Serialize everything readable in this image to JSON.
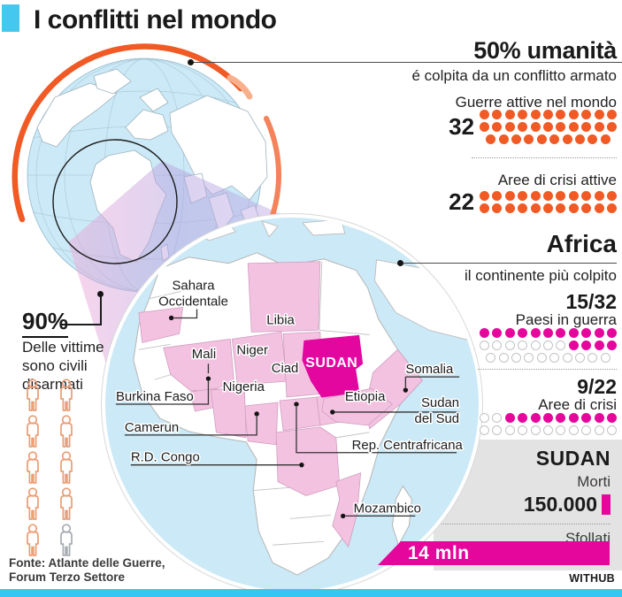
{
  "header": {
    "title": "I conflitti nel mondo"
  },
  "humanity": {
    "headline": "50% umanità",
    "subline": "é colpita da un conflitto armato"
  },
  "stats": {
    "wars": {
      "label": "Guerre attive nel mondo",
      "value": "32"
    },
    "crisis": {
      "label": "Aree di crisi attive",
      "value": "22"
    }
  },
  "africa": {
    "headline": "Africa",
    "subline": "il continente più colpito",
    "war": {
      "value": "15/32",
      "label": "Paesi in guerra"
    },
    "crisis": {
      "value": "9/22",
      "label": "Aree di crisi"
    }
  },
  "victims": {
    "value": "90%",
    "l1": "Delle vittime",
    "l2": "sono civili",
    "l3": "disarmati",
    "icons": [
      1,
      1,
      1,
      1,
      1,
      1,
      1,
      1,
      1,
      0
    ]
  },
  "sudan": {
    "title": "SUDAN",
    "deaths_label": "Morti",
    "deaths_value": "150.000",
    "displaced_label": "Sfollati",
    "displaced_value": "14 mln"
  },
  "map": {
    "labels": {
      "sahara1": "Sahara",
      "sahara2": "Occidentale",
      "libia": "Libia",
      "mali": "Mali",
      "niger": "Niger",
      "ciad": "Ciad",
      "sudan": "SUDAN",
      "nigeria": "Nigeria",
      "burkina": "Burkina Faso",
      "camerun": "Camerun",
      "rdcongo": "R.D. Congo",
      "somalia": "Somalia",
      "sudsud1": "Sudan",
      "sudsud2": "del Sud",
      "repcentr": "Rep. Centrafricana",
      "etiopia": "Etiopia",
      "mozambico": "Mozambico"
    },
    "highlighted_countries": [
      "Sahara Occidentale",
      "Mali",
      "Burkina Faso",
      "Niger",
      "Libia",
      "Ciad",
      "Sudan",
      "Nigeria",
      "Camerun",
      "Rep. Centrafricana",
      "Sudan del Sud",
      "Etiopia",
      "Somalia",
      "R.D. Congo",
      "Mozambico"
    ]
  },
  "dot_grids": {
    "wars": {
      "color": "#F15A24",
      "rows": [
        [
          1,
          1,
          1,
          1,
          1,
          1,
          1,
          1,
          1,
          1,
          1
        ],
        [
          1,
          1,
          1,
          1,
          1,
          1,
          1,
          1,
          1,
          1,
          1
        ],
        [
          1,
          1,
          1,
          1,
          1,
          1,
          1,
          1,
          1,
          1
        ]
      ]
    },
    "crisis": {
      "color": "#F15A24",
      "rows": [
        [
          1,
          1,
          1,
          1,
          1,
          1,
          1,
          1,
          1,
          1,
          1
        ],
        [
          1,
          1,
          1,
          1,
          1,
          1,
          1,
          1,
          1,
          1,
          1
        ]
      ]
    },
    "paesi": {
      "color": "#E5069B",
      "rows": [
        [
          1,
          1,
          1,
          1,
          1,
          1,
          1,
          1,
          1,
          1,
          1
        ],
        [
          0,
          0,
          0,
          0,
          0,
          0,
          0,
          1,
          1,
          1,
          1
        ],
        [
          0,
          0,
          0,
          0,
          0,
          0,
          0,
          0,
          0,
          0
        ]
      ]
    },
    "aree": {
      "color": "#E5069B",
      "rows": [
        [
          0,
          0,
          1,
          1,
          1,
          1,
          1,
          1,
          1,
          1,
          1
        ],
        [
          0,
          0,
          0,
          0,
          0,
          0,
          0,
          0,
          0,
          0,
          0
        ]
      ]
    }
  },
  "chart_data": [
    {
      "type": "pictogram",
      "title": "Guerre attive nel mondo",
      "value": 32,
      "total": 32,
      "unit": "guerre"
    },
    {
      "type": "pictogram",
      "title": "Aree di crisi attive",
      "value": 22,
      "total": 22,
      "unit": "aree"
    },
    {
      "type": "pictogram",
      "title": "Paesi in guerra in Africa",
      "value": 15,
      "total": 32
    },
    {
      "type": "pictogram",
      "title": "Aree di crisi in Africa",
      "value": 9,
      "total": 22
    },
    {
      "type": "pictogram",
      "title": "Vittime civili disarmati",
      "value": 90,
      "total": 100,
      "unit": "%"
    },
    {
      "type": "stat",
      "title": "Sudan - Morti",
      "value": "150.000"
    },
    {
      "type": "bar",
      "title": "Sudan - Sfollati",
      "value": "14 mln"
    }
  ],
  "colors": {
    "orange": "#F15A24",
    "magenta": "#E5069B",
    "pink_country": "#F4C2E1",
    "ocean": "#CBE9F6",
    "cyan": "#35C6F4",
    "panel": "#E3E3E3",
    "person_orange": "#EB9C72",
    "person_gray": "#A6ACB2"
  },
  "footer": {
    "source1": "Fonte: Atlante delle Guerre,",
    "source2": "Forum Terzo Settore",
    "brand": "WITHUB"
  }
}
